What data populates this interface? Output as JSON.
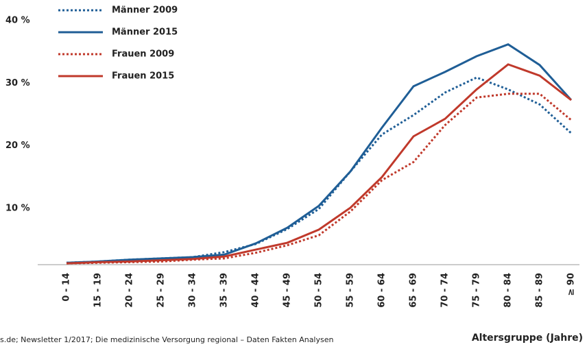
{
  "chart_data": {
    "type": "line",
    "xlabel": "Altersgruppe (Jahre)",
    "source": "s.de; Newsletter 1/2017; Die medizinische Versorgung regional – Daten Fakten Analysen",
    "categories": [
      "0 - 14",
      "15 - 19",
      "20 - 24",
      "25 - 29",
      "30 - 34",
      "35 - 39",
      "40 - 44",
      "45 - 49",
      "50 - 54",
      "55 - 59",
      "60 - 64",
      "65 - 69",
      "70 - 74",
      "75 - 79",
      "80 - 84",
      "85 - 89",
      "≥ 90"
    ],
    "series": [
      {
        "name": "Männer 2009",
        "color": "#1f5e96",
        "dashed": true,
        "values": [
          1.3,
          1.5,
          1.8,
          2.0,
          2.2,
          3.0,
          4.3,
          6.7,
          9.9,
          15.9,
          21.8,
          24.9,
          28.5,
          30.9,
          29.0,
          26.6,
          22.0
        ]
      },
      {
        "name": "Männer 2015",
        "color": "#1f5e96",
        "dashed": false,
        "values": [
          1.3,
          1.5,
          1.8,
          2.0,
          2.2,
          2.6,
          4.4,
          6.9,
          10.4,
          15.9,
          22.9,
          29.5,
          31.8,
          34.3,
          36.2,
          32.9,
          27.3
        ]
      },
      {
        "name": "Frauen 2009",
        "color": "#c0392b",
        "dashed": true,
        "values": [
          1.2,
          1.3,
          1.4,
          1.5,
          1.8,
          2.0,
          2.9,
          4.1,
          5.7,
          9.5,
          14.5,
          17.4,
          23.3,
          27.7,
          28.3,
          28.3,
          24.1
        ]
      },
      {
        "name": "Frauen 2015",
        "color": "#c0392b",
        "dashed": false,
        "values": [
          1.2,
          1.4,
          1.5,
          1.7,
          1.9,
          2.3,
          3.4,
          4.5,
          6.6,
          10.1,
          15.0,
          21.5,
          24.3,
          29.0,
          33.0,
          31.2,
          27.3
        ]
      }
    ],
    "ylim": [
      1,
      40
    ],
    "yticks": [
      {
        "value": 10,
        "label": "10 %"
      },
      {
        "value": 20,
        "label": "20 %"
      },
      {
        "value": 30,
        "label": "30 %"
      },
      {
        "value": 40,
        "label": "40 %"
      }
    ],
    "legend": "top-left"
  }
}
